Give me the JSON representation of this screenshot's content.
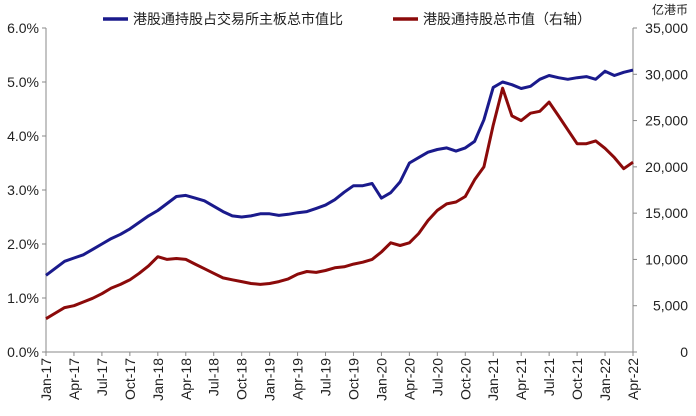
{
  "chart_data": {
    "type": "line",
    "legend_placement": "top",
    "grid": false,
    "y_left": {
      "ylim": [
        0,
        6
      ],
      "ticks": [
        0,
        1,
        2,
        3,
        4,
        5,
        6
      ],
      "tick_labels": [
        "0.0%",
        "1.0%",
        "2.0%",
        "3.0%",
        "4.0%",
        "5.0%",
        "6.0%"
      ]
    },
    "y_right": {
      "unit": "亿港币",
      "ylim": [
        0,
        35000
      ],
      "ticks": [
        0,
        5000,
        10000,
        15000,
        20000,
        25000,
        30000,
        35000
      ],
      "tick_labels": [
        "0",
        "5,000",
        "10,000",
        "15,000",
        "20,000",
        "25,000",
        "30,000",
        "35,000"
      ]
    },
    "x_labels": [
      "Jan-17",
      "Apr-17",
      "Jul-17",
      "Oct-17",
      "Jan-18",
      "Apr-18",
      "Jul-18",
      "Oct-18",
      "Jan-19",
      "Apr-19",
      "Jul-19",
      "Oct-19",
      "Jan-20",
      "Apr-20",
      "Jul-20",
      "Oct-20",
      "Jan-21",
      "Apr-21",
      "Jul-21",
      "Oct-21",
      "Jan-22",
      "Apr-22"
    ],
    "series": [
      {
        "name": "港股通持股占交易所主板总市值比",
        "axis": "left",
        "color": "#1a1a8c",
        "x": [
          "2017-01",
          "2017-02",
          "2017-03",
          "2017-04",
          "2017-05",
          "2017-06",
          "2017-07",
          "2017-08",
          "2017-09",
          "2017-10",
          "2017-11",
          "2017-12",
          "2018-01",
          "2018-02",
          "2018-03",
          "2018-04",
          "2018-05",
          "2018-06",
          "2018-07",
          "2018-08",
          "2018-09",
          "2018-10",
          "2018-11",
          "2018-12",
          "2019-01",
          "2019-02",
          "2019-03",
          "2019-04",
          "2019-05",
          "2019-06",
          "2019-07",
          "2019-08",
          "2019-09",
          "2019-10",
          "2019-11",
          "2019-12",
          "2020-01",
          "2020-02",
          "2020-03",
          "2020-04",
          "2020-05",
          "2020-06",
          "2020-07",
          "2020-08",
          "2020-09",
          "2020-10",
          "2020-11",
          "2020-12",
          "2021-01",
          "2021-02",
          "2021-03",
          "2021-04",
          "2021-05",
          "2021-06",
          "2021-07",
          "2021-08",
          "2021-09",
          "2021-10",
          "2021-11",
          "2021-12",
          "2022-01",
          "2022-02",
          "2022-03",
          "2022-04"
        ],
        "y": [
          1.42,
          1.55,
          1.68,
          1.74,
          1.8,
          1.9,
          2.0,
          2.1,
          2.18,
          2.28,
          2.4,
          2.52,
          2.62,
          2.75,
          2.88,
          2.9,
          2.85,
          2.8,
          2.7,
          2.6,
          2.52,
          2.5,
          2.52,
          2.56,
          2.56,
          2.53,
          2.55,
          2.58,
          2.6,
          2.66,
          2.72,
          2.82,
          2.96,
          3.08,
          3.08,
          3.12,
          2.85,
          2.95,
          3.15,
          3.5,
          3.6,
          3.7,
          3.75,
          3.78,
          3.72,
          3.78,
          3.9,
          4.3,
          4.9,
          5.0,
          4.95,
          4.88,
          4.92,
          5.05,
          5.12,
          5.08,
          5.05,
          5.08,
          5.1,
          5.05,
          5.2,
          5.12,
          5.18,
          5.22
        ]
      },
      {
        "name": "港股通持股总市值（右轴）",
        "axis": "right",
        "color": "#8b0a0a",
        "x": [
          "2017-01",
          "2017-02",
          "2017-03",
          "2017-04",
          "2017-05",
          "2017-06",
          "2017-07",
          "2017-08",
          "2017-09",
          "2017-10",
          "2017-11",
          "2017-12",
          "2018-01",
          "2018-02",
          "2018-03",
          "2018-04",
          "2018-05",
          "2018-06",
          "2018-07",
          "2018-08",
          "2018-09",
          "2018-10",
          "2018-11",
          "2018-12",
          "2019-01",
          "2019-02",
          "2019-03",
          "2019-04",
          "2019-05",
          "2019-06",
          "2019-07",
          "2019-08",
          "2019-09",
          "2019-10",
          "2019-11",
          "2019-12",
          "2020-01",
          "2020-02",
          "2020-03",
          "2020-04",
          "2020-05",
          "2020-06",
          "2020-07",
          "2020-08",
          "2020-09",
          "2020-10",
          "2020-11",
          "2020-12",
          "2021-01",
          "2021-02",
          "2021-03",
          "2021-04",
          "2021-05",
          "2021-06",
          "2021-07",
          "2021-08",
          "2021-09",
          "2021-10",
          "2021-11",
          "2021-12",
          "2022-01",
          "2022-02",
          "2022-03",
          "2022-04"
        ],
        "y": [
          3600,
          4200,
          4800,
          5000,
          5400,
          5800,
          6300,
          6900,
          7300,
          7800,
          8500,
          9300,
          10300,
          10000,
          10100,
          10000,
          9500,
          9000,
          8500,
          8000,
          7800,
          7600,
          7400,
          7300,
          7400,
          7600,
          7900,
          8400,
          8700,
          8600,
          8800,
          9100,
          9200,
          9500,
          9700,
          10000,
          10800,
          11800,
          11500,
          11800,
          12800,
          14200,
          15300,
          16000,
          16200,
          16800,
          18600,
          20000,
          24500,
          28500,
          25500,
          25000,
          25800,
          26000,
          27000,
          25500,
          24000,
          22500,
          22500,
          22800,
          22000,
          21000,
          19800,
          20500
        ]
      }
    ]
  }
}
